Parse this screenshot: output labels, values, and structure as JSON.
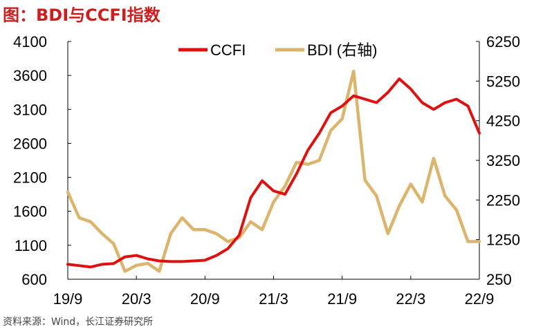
{
  "title": "图：BDI与CCFI指数",
  "source": "资料来源：Wind，长江证券研究所",
  "chart_data": {
    "type": "line",
    "title": "图：BDI与CCFI指数",
    "x_ticks": [
      "19/9",
      "20/3",
      "20/9",
      "21/3",
      "21/9",
      "22/3",
      "22/9"
    ],
    "y_left": {
      "min": 600,
      "max": 4100,
      "ticks": [
        "4100",
        "3600",
        "3100",
        "2600",
        "2100",
        "1600",
        "1100",
        "600"
      ]
    },
    "y_right": {
      "min": 250,
      "max": 6250,
      "ticks": [
        "6250",
        "5250",
        "4250",
        "3250",
        "2250",
        "1250",
        "250"
      ]
    },
    "colors": {
      "ccfi": "#e01010",
      "bdi": "#dcb56c"
    },
    "series": [
      {
        "name": "CCFI",
        "axis": "left",
        "points": [
          [
            "19/9",
            820
          ],
          [
            "19/10",
            800
          ],
          [
            "19/11",
            780
          ],
          [
            "19/12",
            820
          ],
          [
            "20/1",
            830
          ],
          [
            "20/2",
            930
          ],
          [
            "20/3",
            950
          ],
          [
            "20/4",
            900
          ],
          [
            "20/5",
            870
          ],
          [
            "20/6",
            860
          ],
          [
            "20/7",
            860
          ],
          [
            "20/8",
            870
          ],
          [
            "20/9",
            880
          ],
          [
            "20/10",
            950
          ],
          [
            "20/11",
            1050
          ],
          [
            "20/12",
            1250
          ],
          [
            "21/1",
            1800
          ],
          [
            "21/2",
            2050
          ],
          [
            "21/3",
            1900
          ],
          [
            "21/4",
            1850
          ],
          [
            "21/5",
            2150
          ],
          [
            "21/6",
            2500
          ],
          [
            "21/7",
            2750
          ],
          [
            "21/8",
            3050
          ],
          [
            "21/9",
            3150
          ],
          [
            "21/10",
            3300
          ],
          [
            "21/11",
            3250
          ],
          [
            "21/12",
            3200
          ],
          [
            "22/1",
            3350
          ],
          [
            "22/2",
            3550
          ],
          [
            "22/3",
            3400
          ],
          [
            "22/4",
            3200
          ],
          [
            "22/5",
            3100
          ],
          [
            "22/6",
            3200
          ],
          [
            "22/7",
            3250
          ],
          [
            "22/8",
            3150
          ],
          [
            "22/9",
            2750
          ]
        ]
      },
      {
        "name": "BDI (右轴)",
        "axis": "right",
        "points": [
          [
            "19/9",
            2450
          ],
          [
            "19/10",
            1800
          ],
          [
            "19/11",
            1700
          ],
          [
            "19/12",
            1400
          ],
          [
            "20/1",
            1150
          ],
          [
            "20/2",
            450
          ],
          [
            "20/3",
            600
          ],
          [
            "20/4",
            650
          ],
          [
            "20/5",
            450
          ],
          [
            "20/6",
            1400
          ],
          [
            "20/7",
            1800
          ],
          [
            "20/8",
            1500
          ],
          [
            "20/9",
            1500
          ],
          [
            "20/10",
            1400
          ],
          [
            "20/11",
            1200
          ],
          [
            "20/12",
            1300
          ],
          [
            "21/1",
            1700
          ],
          [
            "21/2",
            1500
          ],
          [
            "21/3",
            2200
          ],
          [
            "21/4",
            2600
          ],
          [
            "21/5",
            3200
          ],
          [
            "21/6",
            3150
          ],
          [
            "21/7",
            3250
          ],
          [
            "21/8",
            4000
          ],
          [
            "21/9",
            4300
          ],
          [
            "21/10",
            5500
          ],
          [
            "21/11",
            2750
          ],
          [
            "21/12",
            2350
          ],
          [
            "22/1",
            1400
          ],
          [
            "22/2",
            2100
          ],
          [
            "22/3",
            2650
          ],
          [
            "22/4",
            2200
          ],
          [
            "22/5",
            3300
          ],
          [
            "22/6",
            2350
          ],
          [
            "22/7",
            2000
          ],
          [
            "22/8",
            1200
          ],
          [
            "22/9",
            1200
          ]
        ]
      }
    ],
    "legend": "top-center",
    "grid": false
  }
}
